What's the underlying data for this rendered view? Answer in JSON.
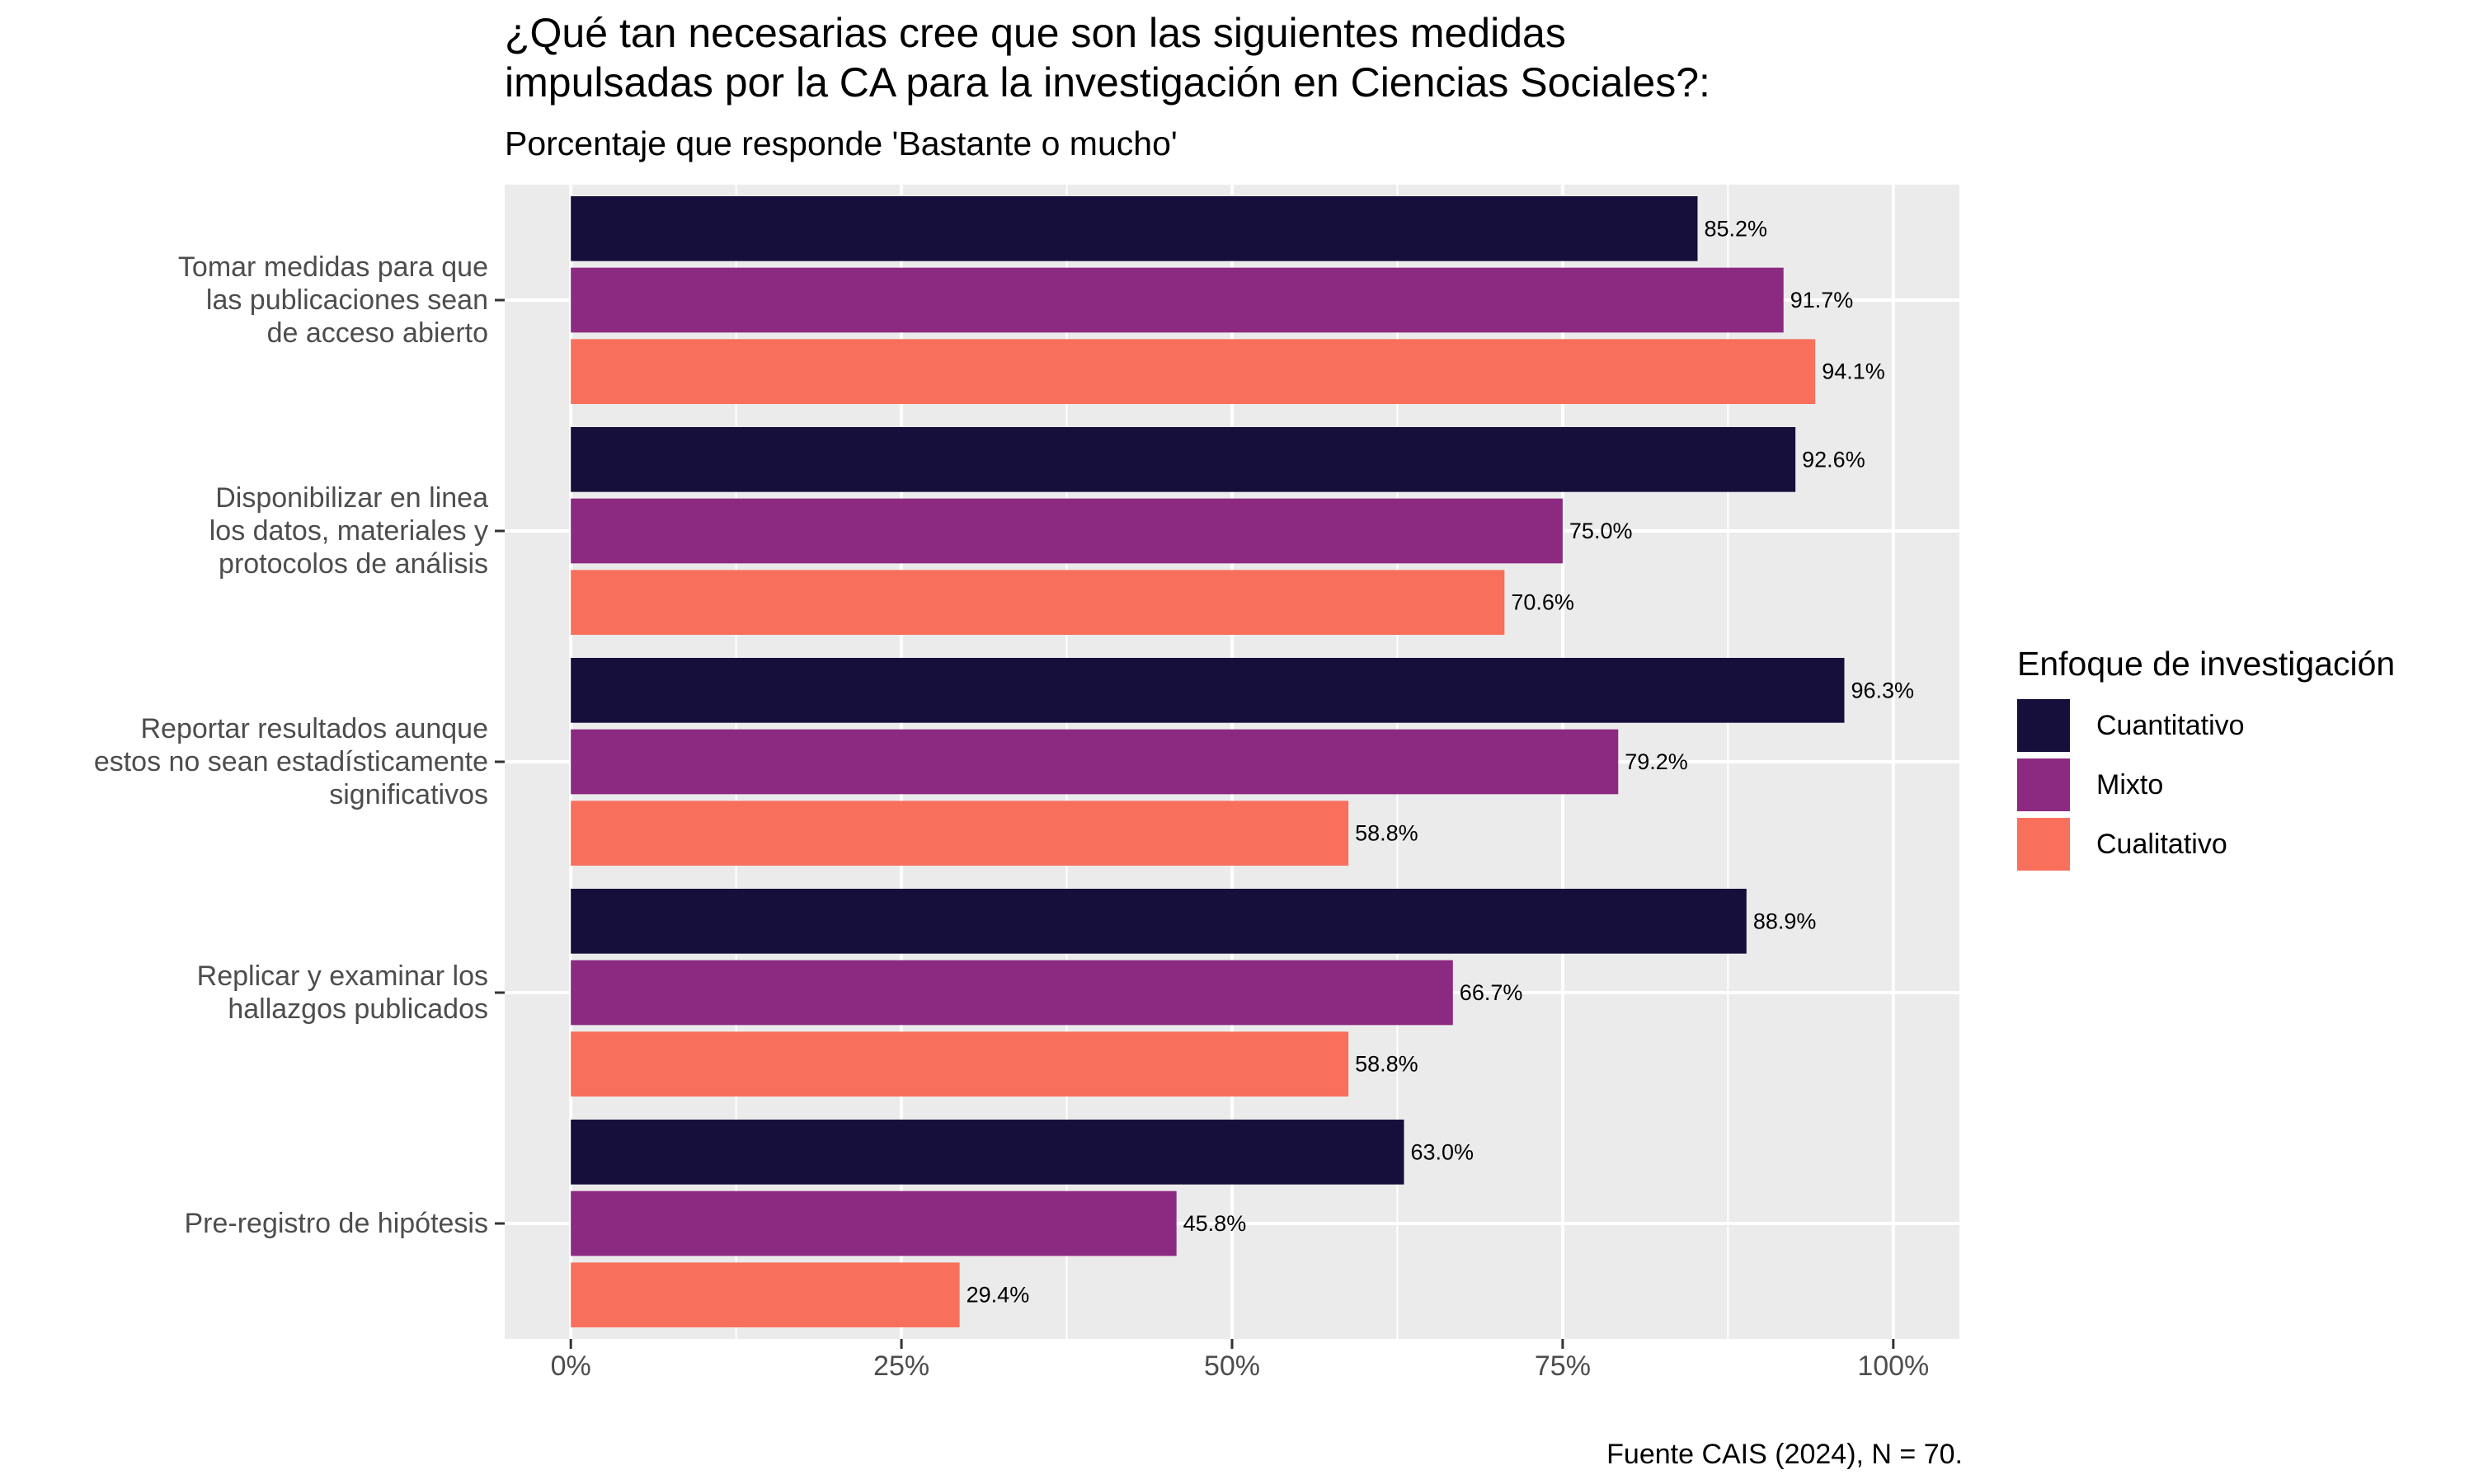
{
  "chart_data": {
    "type": "bar",
    "orientation": "horizontal",
    "title_lines": [
      "¿Qué tan necesarias cree que son las siguientes medidas",
      "impulsadas por la CA para la investigación en Ciencias Sociales?:"
    ],
    "subtitle": "Porcentaje que responde 'Bastante o mucho'",
    "caption": "Fuente CAIS (2024), N = 70.",
    "xlabel": "",
    "ylabel": "",
    "xlim": [
      -5,
      105
    ],
    "x_ticks": [
      0,
      25,
      50,
      75,
      100
    ],
    "x_tick_labels": [
      "0%",
      "25%",
      "50%",
      "75%",
      "100%"
    ],
    "grid": true,
    "legend": {
      "title": "Enfoque de investigación",
      "position": "right"
    },
    "categories": [
      [
        "Tomar medidas para que",
        "las publicaciones sean",
        "de acceso abierto"
      ],
      [
        "Disponibilizar en linea",
        "los datos, materiales y",
        "protocolos de análisis"
      ],
      [
        "Reportar resultados aunque",
        "estos no sean estadísticamente",
        "significativos"
      ],
      [
        "Replicar y examinar los",
        "hallazgos publicados"
      ],
      [
        "Pre-registro de hipótesis"
      ]
    ],
    "series": [
      {
        "name": "Cuantitativo",
        "color": "#160f3b",
        "values": [
          85.2,
          92.6,
          96.3,
          88.9,
          63.0
        ],
        "labels": [
          "85.2%",
          "92.6%",
          "96.3%",
          "88.9%",
          "63.0%"
        ]
      },
      {
        "name": "Mixto",
        "color": "#8c2a81",
        "values": [
          91.7,
          75.0,
          79.2,
          66.7,
          45.8
        ],
        "labels": [
          "91.7%",
          "75.0%",
          "79.2%",
          "66.7%",
          "45.8%"
        ]
      },
      {
        "name": "Cualitativo",
        "color": "#f8705c",
        "values": [
          94.1,
          70.6,
          58.8,
          58.8,
          29.4
        ],
        "labels": [
          "94.1%",
          "70.6%",
          "58.8%",
          "58.8%",
          "29.4%"
        ]
      }
    ],
    "colors": {
      "panel_background": "#ebebeb",
      "grid_major": "#ffffff",
      "axis_text": "#4d4d4d"
    }
  }
}
